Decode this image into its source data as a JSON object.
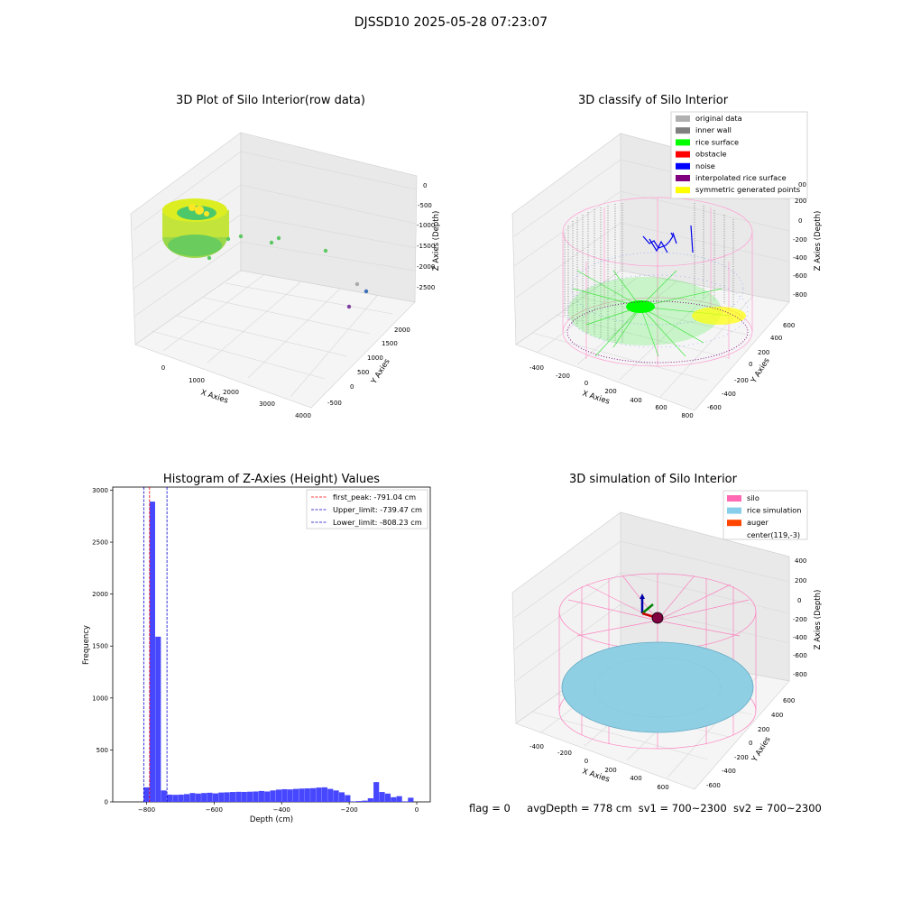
{
  "suptitle": "DJSSD10 2025-05-28 07:23:07",
  "panel1": {
    "title": "3D Plot of Silo Interior(row data)",
    "xlabel": "X Axies",
    "ylabel": "Y Axies",
    "zlabel": "Z Axies (Depth)",
    "xticks": [
      "0",
      "1000",
      "2000",
      "3000",
      "4000"
    ],
    "yticks": [
      "-500",
      "0",
      "500",
      "1000",
      "1500",
      "2000"
    ],
    "zticks": [
      "0",
      "-500",
      "-1000",
      "-1500",
      "-2000",
      "-2500"
    ]
  },
  "panel2": {
    "title": "3D classify of Silo Interior",
    "xlabel": "X Axies",
    "ylabel": "Y Axies",
    "zlabel": "Z Axies (Depth)",
    "xticks": [
      "-400",
      "-200",
      "0",
      "200",
      "400",
      "600",
      "800"
    ],
    "yticks": [
      "-600",
      "-400",
      "-200",
      "0",
      "200",
      "400",
      "600"
    ],
    "zticks": [
      "200",
      "0",
      "-200",
      "-400",
      "-600",
      "-800"
    ],
    "zticks_top": "00",
    "legend": [
      {
        "label": "original data",
        "color": "#b0b0b0"
      },
      {
        "label": "inner wall",
        "color": "#808080"
      },
      {
        "label": "rice surface",
        "color": "#00ff00"
      },
      {
        "label": "obstacle",
        "color": "#ff0000"
      },
      {
        "label": "noise",
        "color": "#0000ff"
      },
      {
        "label": "interpolated rice surface",
        "color": "#800080"
      },
      {
        "label": "symmetric generated points",
        "color": "#ffff00"
      }
    ]
  },
  "panel3": {
    "title": "Histogram of Z-Axies (Height) Values",
    "xlabel": "Depth (cm)",
    "ylabel": "Frequency",
    "legend": [
      {
        "label": "first_peak: -791.04 cm",
        "color": "#ff0000"
      },
      {
        "label": "Upper_limit: -739.47 cm",
        "color": "#0000cc"
      },
      {
        "label": "Lower_limit: -808.23 cm",
        "color": "#0000cc"
      }
    ]
  },
  "panel4": {
    "title": "3D simulation of Silo Interior",
    "xlabel": "X Axies",
    "ylabel": "Y Axies",
    "zlabel": "Z Axies (Depth)",
    "xticks": [
      "-400",
      "-200",
      "0",
      "200",
      "400",
      "600"
    ],
    "yticks": [
      "-600",
      "-400",
      "-200",
      "0",
      "200",
      "400",
      "600"
    ],
    "zticks": [
      "400",
      "200",
      "0",
      "-200",
      "-400",
      "-600",
      "-800"
    ],
    "legend": [
      {
        "label": "silo",
        "color": "#ff69b4"
      },
      {
        "label": "rice simulation",
        "color": "#87ceeb"
      },
      {
        "label": "auger",
        "color": "#ff4500"
      },
      {
        "label": "center(119,-3)",
        "color": ""
      }
    ]
  },
  "footer": {
    "flag": "flag = 0",
    "avg": "avgDepth = 778 cm",
    "sv1": "sv1 = 700~2300",
    "sv2": "sv2 = 700~2300"
  },
  "chart_data": [
    {
      "type": "histogram",
      "title": "Histogram of Z-Axies (Height) Values",
      "xlabel": "Depth (cm)",
      "ylabel": "Frequency",
      "xlim": [
        -900,
        40
      ],
      "ylim": [
        0,
        3030
      ],
      "xticks": [
        -800,
        -600,
        -400,
        -200,
        0
      ],
      "yticks": [
        0,
        500,
        1000,
        1500,
        2000,
        2500,
        3000
      ],
      "bin_width": 17,
      "bins": [
        {
          "x0": -808,
          "count": 140
        },
        {
          "x0": -791,
          "count": 2890
        },
        {
          "x0": -774,
          "count": 1590
        },
        {
          "x0": -757,
          "count": 110
        },
        {
          "x0": -740,
          "count": 70
        },
        {
          "x0": -723,
          "count": 68
        },
        {
          "x0": -706,
          "count": 70
        },
        {
          "x0": -689,
          "count": 75
        },
        {
          "x0": -672,
          "count": 85
        },
        {
          "x0": -655,
          "count": 80
        },
        {
          "x0": -638,
          "count": 85
        },
        {
          "x0": -621,
          "count": 88
        },
        {
          "x0": -604,
          "count": 82
        },
        {
          "x0": -587,
          "count": 90
        },
        {
          "x0": -570,
          "count": 92
        },
        {
          "x0": -553,
          "count": 95
        },
        {
          "x0": -536,
          "count": 97
        },
        {
          "x0": -519,
          "count": 96
        },
        {
          "x0": -502,
          "count": 98
        },
        {
          "x0": -485,
          "count": 100
        },
        {
          "x0": -468,
          "count": 105
        },
        {
          "x0": -451,
          "count": 100
        },
        {
          "x0": -434,
          "count": 110
        },
        {
          "x0": -417,
          "count": 118
        },
        {
          "x0": -400,
          "count": 122
        },
        {
          "x0": -383,
          "count": 120
        },
        {
          "x0": -366,
          "count": 125
        },
        {
          "x0": -349,
          "count": 128
        },
        {
          "x0": -332,
          "count": 130
        },
        {
          "x0": -315,
          "count": 132
        },
        {
          "x0": -298,
          "count": 138
        },
        {
          "x0": -281,
          "count": 140
        },
        {
          "x0": -264,
          "count": 125
        },
        {
          "x0": -247,
          "count": 110
        },
        {
          "x0": -230,
          "count": 92
        },
        {
          "x0": -213,
          "count": 65
        },
        {
          "x0": -196,
          "count": 5
        },
        {
          "x0": -179,
          "count": 8
        },
        {
          "x0": -162,
          "count": 12
        },
        {
          "x0": -145,
          "count": 35
        },
        {
          "x0": -128,
          "count": 190
        },
        {
          "x0": -111,
          "count": 95
        },
        {
          "x0": -94,
          "count": 80
        },
        {
          "x0": -77,
          "count": 45
        },
        {
          "x0": -60,
          "count": 55
        },
        {
          "x0": -43,
          "count": 5
        },
        {
          "x0": -26,
          "count": 40
        }
      ],
      "vlines": [
        {
          "name": "first_peak: -791.04 cm",
          "x": -791.04,
          "color": "#ff0000"
        },
        {
          "name": "Upper_limit: -739.47 cm",
          "x": -739.47,
          "color": "#0000cc"
        },
        {
          "name": "Lower_limit: -808.23 cm",
          "x": -808.23,
          "color": "#0000cc"
        }
      ],
      "bar_color": "#4747ff",
      "legend_position": "upper right"
    }
  ]
}
